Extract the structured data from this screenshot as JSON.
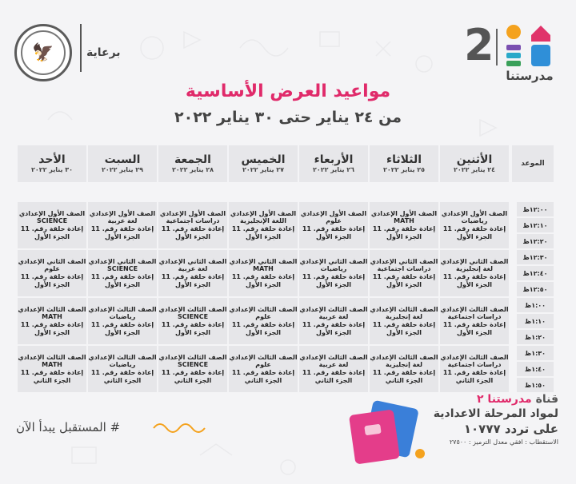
{
  "header": {
    "sponsor_label": "برعاية",
    "brand_number": "2",
    "brand_name": "مدرستنا",
    "title": "مواعيد العرض الأساسية",
    "subtitle": "من ٢٤ يناير حتى ٣٠ يناير ٢٠٢٢"
  },
  "table": {
    "time_header": "الموعد",
    "days": [
      {
        "name": "الأحد",
        "date": "٣٠ يناير ٢٠٢٢"
      },
      {
        "name": "السبت",
        "date": "٢٩ يناير ٢٠٢٢"
      },
      {
        "name": "الجمعة",
        "date": "٢٨ يناير ٢٠٢٢"
      },
      {
        "name": "الخميس",
        "date": "٢٧ يناير ٢٠٢٢"
      },
      {
        "name": "الأربعاء",
        "date": "٢٦ يناير ٢٠٢٢"
      },
      {
        "name": "الثلاثاء",
        "date": "٢٥ يناير ٢٠٢٢"
      },
      {
        "name": "الأثنين",
        "date": "٢٤ يناير ٢٠٢٢"
      }
    ],
    "rows": [
      {
        "times": [
          "١٢:٠٠ظ",
          "١٢:١٠ظ",
          "١٢:٢٠ظ"
        ],
        "cells": [
          [
            "الصف الأول الإعدادي",
            "SCIENCE",
            "إعادة حلقة رقم. 11",
            "الجزء الأول"
          ],
          [
            "الصف الأول الإعدادي",
            "لغة عربية",
            "إعادة حلقة رقم. 11",
            "الجزء الأول"
          ],
          [
            "الصف الأول الإعدادي",
            "دراسات اجتماعية",
            "إعادة حلقة رقم. 11",
            "الجزء الأول"
          ],
          [
            "الصف الأول الإعدادي",
            "اللغة الإنجليزية",
            "إعادة حلقة رقم. 11",
            "الجزء الأول"
          ],
          [
            "الصف الأول الإعدادي",
            "علوم",
            "إعادة حلقة رقم. 11",
            "الجزء الأول"
          ],
          [
            "الصف الأول الإعدادي",
            "MATH",
            "إعادة حلقة رقم. 11",
            "الجزء الأول"
          ],
          [
            "الصف الأول الإعدادي",
            "رياضيات",
            "إعادة حلقة رقم. 11",
            "الجزء الأول"
          ]
        ]
      },
      {
        "times": [
          "١٢:٣٠ظ",
          "١٢:٤٠ظ",
          "١٢:٥٠ظ"
        ],
        "cells": [
          [
            "الصف الثاني الإعدادي",
            "علوم",
            "إعادة حلقة رقم. 11",
            "الجزء الأول"
          ],
          [
            "الصف الثاني الإعدادي",
            "SCIENCE",
            "إعادة حلقة رقم. 11",
            "الجزء الأول"
          ],
          [
            "الصف الثاني الإعدادي",
            "لغة عربية",
            "إعادة حلقة رقم. 11",
            "الجزء الأول"
          ],
          [
            "الصف الثاني الإعدادي",
            "MATH",
            "إعادة حلقة رقم. 11",
            "الجزء الأول"
          ],
          [
            "الصف الثاني الإعدادي",
            "رياضيات",
            "إعادة حلقة رقم. 11",
            "الجزء الأول"
          ],
          [
            "الصف الثاني الإعدادي",
            "دراسات اجتماعية",
            "إعادة حلقة رقم. 11",
            "الجزء الأول"
          ],
          [
            "الصف الثاني الإعدادي",
            "لغة إنجليزية",
            "إعادة حلقة رقم. 11",
            "الجزء الأول"
          ]
        ]
      },
      {
        "times": [
          "١:٠٠ظ",
          "١:١٠ظ",
          "١:٢٠ظ"
        ],
        "cells": [
          [
            "الصف الثالث الإعدادي",
            "MATH",
            "إعادة حلقة رقم. 11",
            "الجزء الأول"
          ],
          [
            "الصف الثالث الإعدادي",
            "رياضيات",
            "إعادة حلقة رقم. 11",
            "الجزء الأول"
          ],
          [
            "الصف الثالث الإعدادي",
            "SCIENCE",
            "إعادة حلقة رقم. 11",
            "الجزء الأول"
          ],
          [
            "الصف الثالث الإعدادي",
            "علوم",
            "إعادة حلقة رقم. 11",
            "الجزء الأول"
          ],
          [
            "الصف الثالث الإعدادي",
            "لغة عربية",
            "إعادة حلقة رقم. 11",
            "الجزء الأول"
          ],
          [
            "الصف الثالث الإعدادي",
            "لغة إنجليزية",
            "إعادة حلقة رقم. 11",
            "الجزء الأول"
          ],
          [
            "الصف الثالث الإعدادي",
            "دراسات اجتماعية",
            "إعادة حلقة رقم. 11",
            "الجزء الأول"
          ]
        ]
      },
      {
        "times": [
          "١:٣٠ظ",
          "١:٤٠ظ",
          "١:٥٠ظ"
        ],
        "cells": [
          [
            "الصف الثالث الإعدادي",
            "MATH",
            "إعادة حلقة رقم. 11",
            "الجزء الثاني"
          ],
          [
            "الصف الثالث الإعدادي",
            "رياضيات",
            "إعادة حلقة رقم. 11",
            "الجزء الثاني"
          ],
          [
            "الصف الثالث الإعدادي",
            "SCIENCE",
            "إعادة حلقة رقم. 11",
            "الجزء الثاني"
          ],
          [
            "الصف الثالث الإعدادي",
            "علوم",
            "إعادة حلقة رقم. 11",
            "الجزء الثاني"
          ],
          [
            "الصف الثالث الإعدادي",
            "لغة عربية",
            "إعادة حلقة رقم. 11",
            "الجزء الثاني"
          ],
          [
            "الصف الثالث الإعدادي",
            "لغة إنجليزية",
            "إعادة حلقة رقم. 11",
            "الجزء الثاني"
          ],
          [
            "الصف الثالث الإعدادي",
            "دراسات اجتماعية",
            "إعادة حلقة رقم. 11",
            "الجزء الثاني"
          ]
        ]
      }
    ]
  },
  "footer": {
    "slogan": "# المستقبل يبدأ الآن",
    "channel_prefix": "قناة",
    "channel_name": "مدرستنا ٢",
    "line2": "لمواد المرحلة الاعدادية",
    "line3": "على تردد ١٠٧٧٧",
    "line4": "الاستقطاب : افقي معدل الترميز : ٢٧٥٠٠"
  },
  "colors": {
    "accent": "#e02a6a",
    "cell_bg": "#e6e6e9",
    "background": "#f4f4f6"
  }
}
